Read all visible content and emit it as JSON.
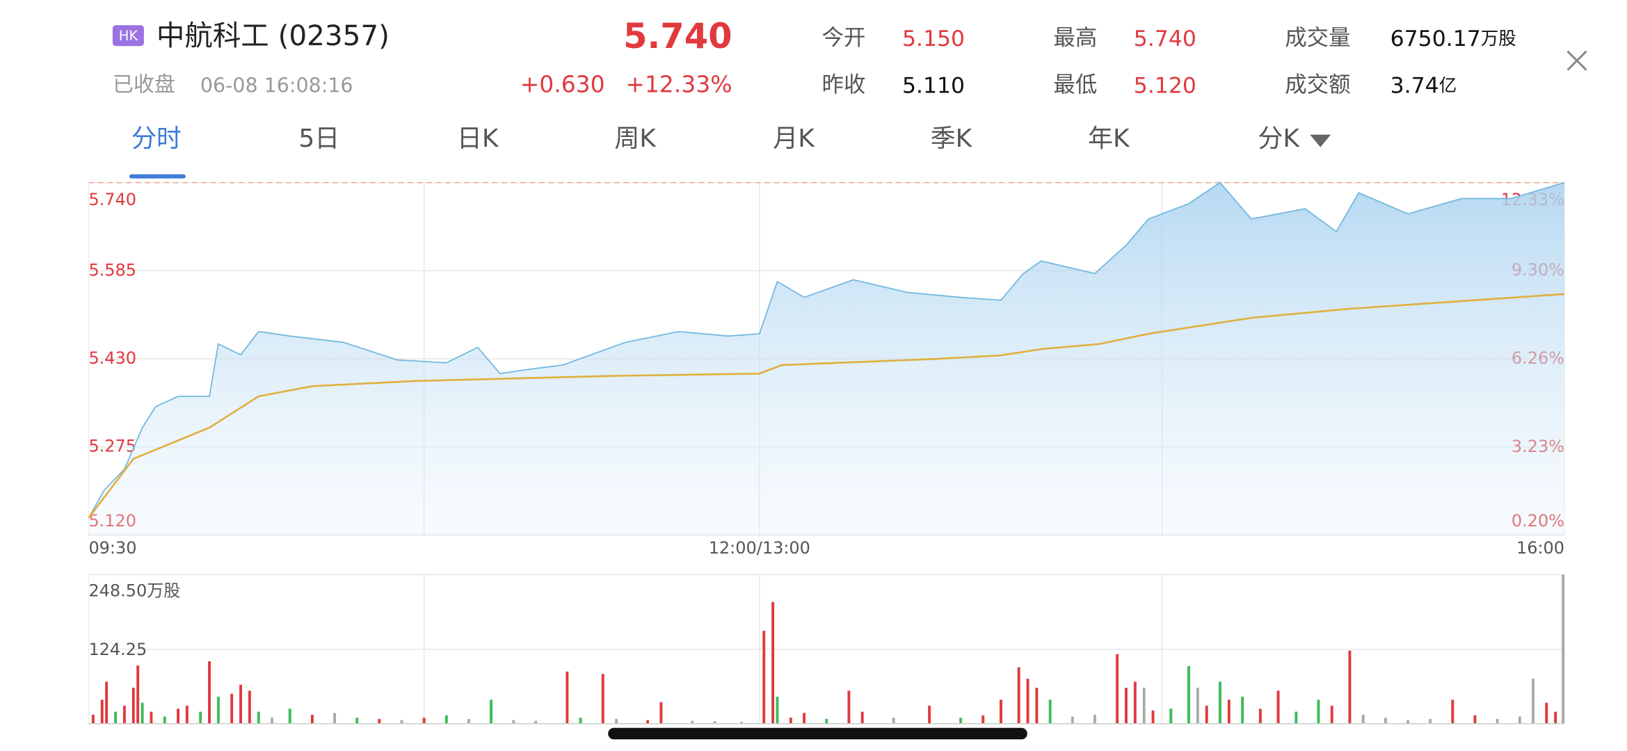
{
  "header": {
    "badge": "HK",
    "name": "中航科工 (02357)",
    "status": "已收盘",
    "time": "06-08 16:08:16",
    "price": "5.740",
    "change": "+0.630",
    "change_pct": "+12.33%",
    "stats": [
      {
        "label": "今开",
        "value": "5.150"
      },
      {
        "label": "昨收",
        "value": "5.110"
      },
      {
        "label": "最高",
        "value": "5.740"
      },
      {
        "label": "最低",
        "value": "5.120"
      },
      {
        "label": "成交量",
        "value": "6750.17",
        "unit": "万股"
      },
      {
        "label": "成交额",
        "value": "3.74",
        "unit": "亿"
      }
    ]
  },
  "tabs": [
    "分时",
    "5日",
    "日K",
    "周K",
    "月K",
    "季K",
    "年K",
    "分K"
  ],
  "chart_data": [
    {
      "type": "line",
      "xlim": [
        0,
        330
      ],
      "xticks": [
        {
          "value": 0,
          "label": "09:30"
        },
        {
          "value": 150,
          "label": "12:00/13:00"
        },
        {
          "value": 330,
          "label": "16:00"
        }
      ],
      "xgrid": [
        75,
        240
      ],
      "ylim": [
        5.12,
        5.74
      ],
      "yticks": [
        {
          "value": 5.74,
          "label": "5.740"
        },
        {
          "value": 5.585,
          "label": "5.585"
        },
        {
          "value": 5.43,
          "label": "5.430"
        },
        {
          "value": 5.275,
          "label": "5.275"
        },
        {
          "value": 5.12,
          "label": "5.120"
        }
      ],
      "y2lim": [
        0.2,
        12.33
      ],
      "y2ticks": [
        {
          "value": 12.33,
          "label": "12.33%"
        },
        {
          "value": 9.3,
          "label": "9.30%"
        },
        {
          "value": 6.26,
          "label": "6.26%"
        },
        {
          "value": 3.23,
          "label": "3.23%"
        },
        {
          "value": 0.2,
          "label": "0.20%"
        }
      ],
      "grid": true,
      "series": [
        {
          "name": "price",
          "color": "#72b8e0",
          "x": [
            0,
            3.5,
            8,
            12,
            15,
            20,
            27,
            29,
            34,
            38,
            45,
            57,
            69,
            80,
            87,
            92,
            97,
            106,
            120,
            132,
            143,
            150,
            154,
            160,
            171,
            183,
            195,
            204,
            209,
            213,
            225,
            232,
            237,
            246,
            253,
            260,
            272,
            279,
            284,
            295,
            307,
            318,
            330
          ],
          "values": [
            5.15,
            5.199,
            5.236,
            5.309,
            5.346,
            5.364,
            5.364,
            5.456,
            5.437,
            5.478,
            5.47,
            5.459,
            5.428,
            5.423,
            5.45,
            5.404,
            5.41,
            5.419,
            5.459,
            5.478,
            5.47,
            5.474,
            5.566,
            5.538,
            5.569,
            5.547,
            5.538,
            5.533,
            5.58,
            5.602,
            5.58,
            5.63,
            5.676,
            5.703,
            5.74,
            5.676,
            5.694,
            5.654,
            5.722,
            5.685,
            5.712,
            5.712,
            5.74
          ]
        },
        {
          "name": "average",
          "color": "#e0b040",
          "x": [
            0,
            10,
            27,
            38,
            50,
            73,
            117,
            150,
            155,
            190,
            204,
            213,
            226,
            237,
            260,
            282,
            330
          ],
          "values": [
            5.15,
            5.254,
            5.309,
            5.364,
            5.382,
            5.391,
            5.4,
            5.404,
            5.419,
            5.43,
            5.436,
            5.447,
            5.456,
            5.474,
            5.502,
            5.518,
            5.544
          ]
        }
      ]
    },
    {
      "type": "bar",
      "xlim": [
        0,
        330
      ],
      "ylim": [
        0,
        248.5
      ],
      "yticks": [
        {
          "value": 248.5,
          "label": "248.50万股"
        },
        124.25
      ],
      "x": [
        1,
        3,
        4,
        6,
        8,
        10,
        11,
        12,
        14,
        17,
        20,
        22,
        25,
        27,
        29,
        32,
        34,
        36,
        38,
        41,
        45,
        50,
        55,
        60,
        65,
        70,
        75,
        80,
        85,
        90,
        95,
        100,
        107,
        110,
        115,
        118,
        125,
        128,
        135,
        140,
        146,
        151,
        153,
        154,
        157,
        160,
        165,
        170,
        173,
        180,
        188,
        195,
        200,
        204,
        208,
        210,
        212,
        215,
        220,
        225,
        230,
        232,
        234,
        236,
        238,
        242,
        246,
        248,
        250,
        253,
        255,
        258,
        262,
        266,
        270,
        275,
        278,
        282,
        285,
        290,
        295,
        300,
        305,
        310,
        315,
        320,
        323,
        326,
        328,
        330
      ],
      "values": [
        15,
        40,
        70,
        20,
        30,
        60,
        97,
        35,
        20,
        12,
        25,
        30,
        20,
        104,
        45,
        50,
        65,
        55,
        20,
        10,
        25,
        15,
        18,
        10,
        8,
        6,
        10,
        14,
        8,
        40,
        6,
        5,
        87,
        10,
        83,
        8,
        6,
        36,
        5,
        4,
        3,
        155,
        203,
        45,
        10,
        18,
        8,
        55,
        20,
        10,
        30,
        10,
        14,
        40,
        94,
        75,
        60,
        40,
        12,
        15,
        116,
        60,
        70,
        60,
        22,
        25,
        96,
        60,
        30,
        70,
        40,
        45,
        25,
        55,
        20,
        40,
        30,
        122,
        15,
        10,
        6,
        8,
        40,
        14,
        8,
        12,
        75,
        35,
        20,
        248.5
      ],
      "colors": [
        "#e0393e",
        "#e0393e",
        "#e0393e",
        "#3dba5a",
        "#e0393e",
        "#e0393e",
        "#e0393e",
        "#3dba5a",
        "#e0393e",
        "#3dba5a",
        "#e0393e",
        "#e0393e",
        "#3dba5a",
        "#e0393e",
        "#3dba5a",
        "#e0393e",
        "#e0393e",
        "#e0393e",
        "#3dba5a",
        "#aaaaaa",
        "#3dba5a",
        "#e0393e",
        "#aaaaaa",
        "#3dba5a",
        "#e0393e",
        "#aaaaaa",
        "#e0393e",
        "#3dba5a",
        "#aaaaaa",
        "#3dba5a",
        "#aaaaaa",
        "#aaaaaa",
        "#e0393e",
        "#3dba5a",
        "#e0393e",
        "#aaaaaa",
        "#e0393e",
        "#e0393e",
        "#aaaaaa",
        "#aaaaaa",
        "#aaaaaa",
        "#e0393e",
        "#e0393e",
        "#3dba5a",
        "#e0393e",
        "#e0393e",
        "#3dba5a",
        "#e0393e",
        "#e0393e",
        "#aaaaaa",
        "#e0393e",
        "#3dba5a",
        "#e0393e",
        "#e0393e",
        "#e0393e",
        "#e0393e",
        "#e0393e",
        "#3dba5a",
        "#aaaaaa",
        "#aaaaaa",
        "#e0393e",
        "#e0393e",
        "#e0393e",
        "#aaaaaa",
        "#e0393e",
        "#3dba5a",
        "#3dba5a",
        "#aaaaaa",
        "#e0393e",
        "#3dba5a",
        "#e0393e",
        "#3dba5a",
        "#e0393e",
        "#e0393e",
        "#3dba5a",
        "#3dba5a",
        "#e0393e",
        "#e0393e",
        "#aaaaaa",
        "#aaaaaa",
        "#aaaaaa",
        "#aaaaaa",
        "#e0393e",
        "#e0393e",
        "#aaaaaa",
        "#aaaaaa",
        "#aaaaaa",
        "#e0393e",
        "#e0393e",
        "#aaaaaa"
      ]
    }
  ]
}
